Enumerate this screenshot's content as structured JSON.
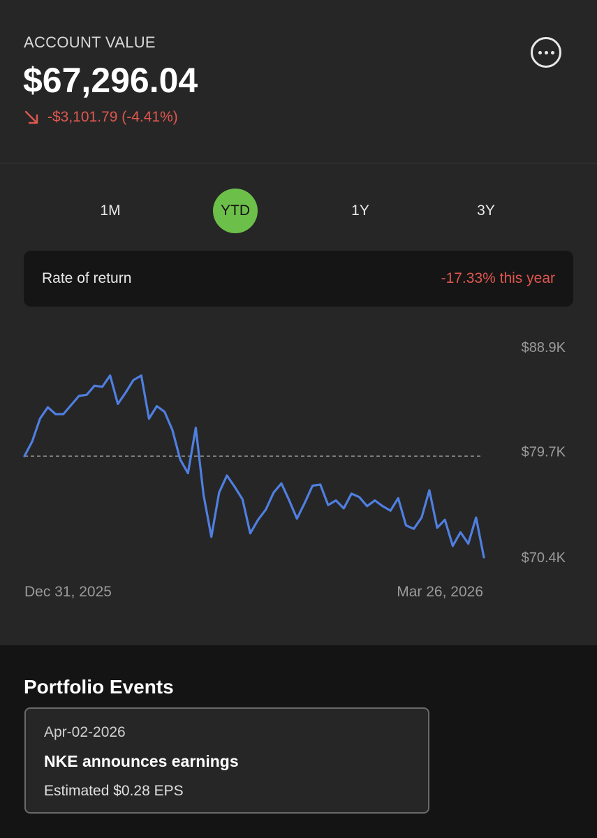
{
  "account": {
    "label": "ACCOUNT VALUE",
    "value": "$67,296.04",
    "change": "-$3,101.79 (-4.41%)",
    "change_icon": "trend-down-arrow-icon",
    "more_icon": "more-options-icon"
  },
  "tabs": [
    {
      "label": "1M",
      "active": false
    },
    {
      "label": "YTD",
      "active": true
    },
    {
      "label": "1Y",
      "active": false
    },
    {
      "label": "3Y",
      "active": false
    }
  ],
  "rate_of_return": {
    "label": "Rate of return",
    "value": "-17.33% this year"
  },
  "colors": {
    "accent_green": "#6cc04a",
    "negative_red": "#e0574f",
    "line_blue": "#4f7fe0"
  },
  "chart_data": {
    "type": "line",
    "y_tick_labels": [
      "$88.9K",
      "$79.7K",
      "$70.4K"
    ],
    "y_ticks": [
      88.9,
      79.7,
      70.4
    ],
    "ylim": [
      70.4,
      88.9
    ],
    "x_tick_labels": [
      "Dec 31, 2025",
      "Mar 26, 2026"
    ],
    "baseline": 79.3,
    "grid": false,
    "series": [
      {
        "values": [
          79.3,
          80.6,
          82.6,
          83.6,
          83.0,
          83.0,
          83.8,
          84.6,
          84.7,
          85.5,
          85.4,
          86.4,
          83.9,
          84.9,
          86.0,
          86.4,
          82.6,
          83.7,
          83.2,
          81.6,
          79.0,
          77.8,
          81.8,
          75.9,
          72.2,
          76.1,
          77.6,
          76.6,
          75.5,
          72.5,
          73.7,
          74.6,
          76.1,
          76.9,
          75.4,
          73.8,
          75.2,
          76.7,
          76.8,
          75.0,
          75.4,
          74.7,
          76.0,
          75.7,
          74.9,
          75.4,
          74.9,
          74.5,
          75.6,
          73.2,
          72.9,
          73.9,
          76.3,
          73.0,
          73.7,
          71.4,
          72.6,
          71.6,
          73.9,
          70.4
        ]
      }
    ]
  },
  "events": {
    "title": "Portfolio Events",
    "items": [
      {
        "date": "Apr-02-2026",
        "title": "NKE announces earnings",
        "subtitle": "Estimated $0.28 EPS"
      }
    ]
  }
}
